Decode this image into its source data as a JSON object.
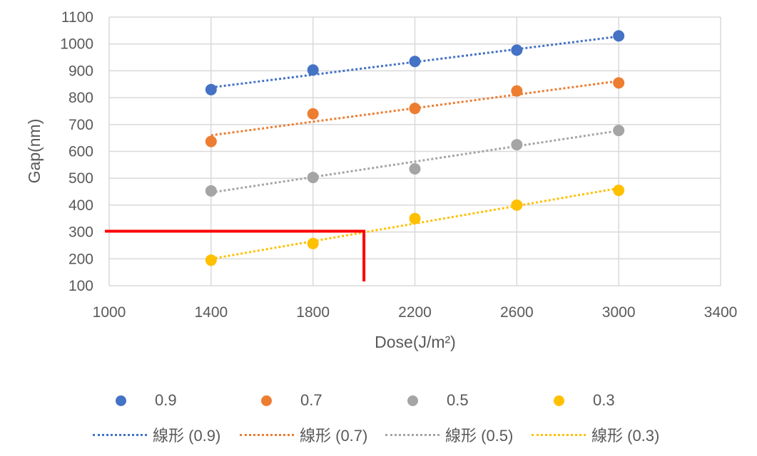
{
  "chart_data": {
    "type": "scatter",
    "xlabel": "Dose(J/m²)",
    "ylabel": "Gap(nm)",
    "xlim": [
      1000,
      3400
    ],
    "ylim": [
      100,
      1100
    ],
    "x_ticks": [
      1000,
      1400,
      1800,
      2200,
      2600,
      3000,
      3400
    ],
    "y_ticks": [
      100,
      200,
      300,
      400,
      500,
      600,
      700,
      800,
      900,
      1000,
      1100
    ],
    "grid": true,
    "legend_position": "bottom",
    "series": [
      {
        "name": "0.9",
        "color": "#4472C4",
        "x": [
          1400,
          1800,
          2200,
          2600,
          3000
        ],
        "y": [
          830,
          903,
          935,
          977,
          1030
        ]
      },
      {
        "name": "0.7",
        "color": "#ED7D31",
        "x": [
          1400,
          1800,
          2200,
          2600,
          3000
        ],
        "y": [
          637,
          740,
          760,
          825,
          855
        ]
      },
      {
        "name": "0.5",
        "color": "#A5A5A5",
        "x": [
          1400,
          1800,
          2200,
          2600,
          3000
        ],
        "y": [
          453,
          503,
          535,
          625,
          678
        ]
      },
      {
        "name": "0.3",
        "color": "#FFC000",
        "x": [
          1400,
          1800,
          2200,
          2600,
          3000
        ],
        "y": [
          195,
          257,
          350,
          400,
          455
        ]
      }
    ],
    "trendlines": [
      {
        "name": "線形 (0.9)",
        "color": "#4472C4",
        "x": [
          1400,
          3000
        ],
        "y": [
          838,
          1028
        ]
      },
      {
        "name": "線形 (0.7)",
        "color": "#ED7D31",
        "x": [
          1400,
          3000
        ],
        "y": [
          660,
          862
        ]
      },
      {
        "name": "線形 (0.5)",
        "color": "#A5A5A5",
        "x": [
          1400,
          3000
        ],
        "y": [
          447,
          677
        ]
      },
      {
        "name": "線形 (0.3)",
        "color": "#FFC000",
        "x": [
          1400,
          3000
        ],
        "y": [
          200,
          463
        ]
      }
    ],
    "annotation": {
      "type": "red-lines",
      "color": "#FF0000",
      "y_level": 303,
      "x_level": 2000
    }
  }
}
